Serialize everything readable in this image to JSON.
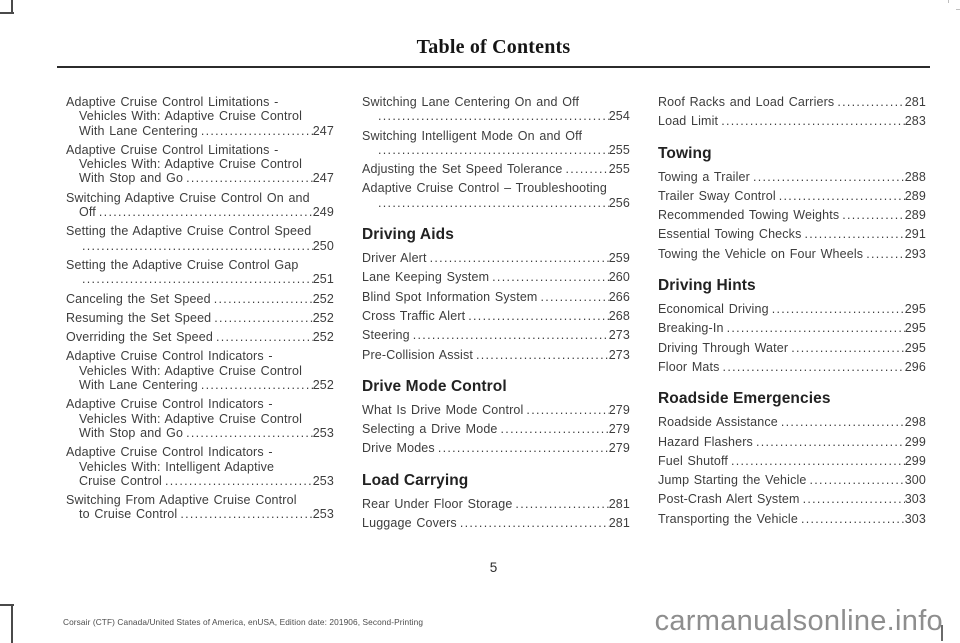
{
  "header": {
    "title": "Table of Contents"
  },
  "toc": {
    "columns": [
      {
        "blocks": [
          {
            "type": "entry",
            "lines": [
              {
                "text": "Adaptive Cruise Control Limitations -"
              },
              {
                "text": "Vehicles With: Adaptive Cruise Control",
                "indent": true
              },
              {
                "text": "With Lane Centering",
                "indent": true,
                "page": "247"
              }
            ]
          },
          {
            "type": "entry",
            "lines": [
              {
                "text": "Adaptive Cruise Control Limitations -"
              },
              {
                "text": "Vehicles With: Adaptive Cruise Control",
                "indent": true
              },
              {
                "text": "With Stop and Go",
                "indent": true,
                "page": "247"
              }
            ]
          },
          {
            "type": "entry",
            "lines": [
              {
                "text": "Switching Adaptive Cruise Control On and"
              },
              {
                "text": "Off",
                "indent": true,
                "page": "249"
              }
            ]
          },
          {
            "type": "entry",
            "lines": [
              {
                "text": "Setting the Adaptive Cruise Control Speed"
              },
              {
                "text": "",
                "indent": true,
                "page": "250"
              }
            ]
          },
          {
            "type": "entry",
            "lines": [
              {
                "text": "Setting the Adaptive Cruise Control Gap"
              },
              {
                "text": "",
                "indent": true,
                "page": "251"
              }
            ]
          },
          {
            "type": "entry",
            "lines": [
              {
                "text": "Canceling the Set Speed",
                "page": "252"
              }
            ]
          },
          {
            "type": "entry",
            "lines": [
              {
                "text": "Resuming the Set Speed",
                "page": "252"
              }
            ]
          },
          {
            "type": "entry",
            "lines": [
              {
                "text": "Overriding the Set Speed",
                "page": "252"
              }
            ]
          },
          {
            "type": "entry",
            "lines": [
              {
                "text": "Adaptive Cruise Control Indicators -"
              },
              {
                "text": "Vehicles With: Adaptive Cruise Control",
                "indent": true
              },
              {
                "text": "With Lane Centering",
                "indent": true,
                "page": "252"
              }
            ]
          },
          {
            "type": "entry",
            "lines": [
              {
                "text": "Adaptive Cruise Control Indicators -"
              },
              {
                "text": "Vehicles With: Adaptive Cruise Control",
                "indent": true
              },
              {
                "text": "With Stop and Go",
                "indent": true,
                "page": "253"
              }
            ]
          },
          {
            "type": "entry",
            "lines": [
              {
                "text": "Adaptive Cruise Control Indicators -"
              },
              {
                "text": "Vehicles With: Intelligent Adaptive",
                "indent": true
              },
              {
                "text": "Cruise Control",
                "indent": true,
                "page": "253"
              }
            ]
          },
          {
            "type": "entry",
            "lines": [
              {
                "text": "Switching From Adaptive Cruise Control"
              },
              {
                "text": "to Cruise Control",
                "indent": true,
                "page": "253"
              }
            ]
          }
        ]
      },
      {
        "blocks": [
          {
            "type": "entry",
            "lines": [
              {
                "text": "Switching Lane Centering On and Off"
              },
              {
                "text": "",
                "indent": true,
                "page": "254"
              }
            ]
          },
          {
            "type": "entry",
            "lines": [
              {
                "text": "Switching Intelligent Mode On and Off"
              },
              {
                "text": "",
                "indent": true,
                "page": "255"
              }
            ]
          },
          {
            "type": "entry",
            "lines": [
              {
                "text": "Adjusting the Set Speed Tolerance",
                "page": "255"
              }
            ]
          },
          {
            "type": "entry",
            "lines": [
              {
                "text": "Adaptive Cruise Control – Troubleshooting"
              },
              {
                "text": "",
                "indent": true,
                "page": "256"
              }
            ]
          },
          {
            "type": "heading",
            "text": "Driving Aids"
          },
          {
            "type": "entry",
            "lines": [
              {
                "text": "Driver Alert",
                "page": "259"
              }
            ]
          },
          {
            "type": "entry",
            "lines": [
              {
                "text": "Lane Keeping System",
                "page": "260"
              }
            ]
          },
          {
            "type": "entry",
            "lines": [
              {
                "text": "Blind Spot Information System",
                "page": "266"
              }
            ]
          },
          {
            "type": "entry",
            "lines": [
              {
                "text": "Cross Traffic Alert",
                "page": "268"
              }
            ]
          },
          {
            "type": "entry",
            "lines": [
              {
                "text": "Steering",
                "page": "273"
              }
            ]
          },
          {
            "type": "entry",
            "lines": [
              {
                "text": "Pre-Collision Assist",
                "page": "273"
              }
            ]
          },
          {
            "type": "heading",
            "text": "Drive Mode Control"
          },
          {
            "type": "entry",
            "lines": [
              {
                "text": "What Is Drive Mode Control",
                "page": "279"
              }
            ]
          },
          {
            "type": "entry",
            "lines": [
              {
                "text": "Selecting a Drive Mode",
                "page": "279"
              }
            ]
          },
          {
            "type": "entry",
            "lines": [
              {
                "text": "Drive Modes",
                "page": "279"
              }
            ]
          },
          {
            "type": "heading",
            "text": "Load Carrying"
          },
          {
            "type": "entry",
            "lines": [
              {
                "text": "Rear Under Floor Storage",
                "page": "281"
              }
            ]
          },
          {
            "type": "entry",
            "lines": [
              {
                "text": "Luggage Covers",
                "page": "281"
              }
            ]
          }
        ]
      },
      {
        "blocks": [
          {
            "type": "entry",
            "lines": [
              {
                "text": "Roof Racks and Load Carriers",
                "page": "281"
              }
            ]
          },
          {
            "type": "entry",
            "lines": [
              {
                "text": "Load Limit",
                "page": "283"
              }
            ]
          },
          {
            "type": "heading",
            "text": "Towing"
          },
          {
            "type": "entry",
            "lines": [
              {
                "text": "Towing a Trailer",
                "page": "288"
              }
            ]
          },
          {
            "type": "entry",
            "lines": [
              {
                "text": "Trailer Sway Control",
                "page": "289"
              }
            ]
          },
          {
            "type": "entry",
            "lines": [
              {
                "text": "Recommended Towing Weights",
                "page": "289"
              }
            ]
          },
          {
            "type": "entry",
            "lines": [
              {
                "text": "Essential Towing Checks",
                "page": "291"
              }
            ]
          },
          {
            "type": "entry",
            "lines": [
              {
                "text": "Towing the Vehicle on Four Wheels",
                "page": "293"
              }
            ]
          },
          {
            "type": "heading",
            "text": "Driving Hints"
          },
          {
            "type": "entry",
            "lines": [
              {
                "text": "Economical Driving",
                "page": "295"
              }
            ]
          },
          {
            "type": "entry",
            "lines": [
              {
                "text": "Breaking-In",
                "page": "295"
              }
            ]
          },
          {
            "type": "entry",
            "lines": [
              {
                "text": "Driving Through Water",
                "page": "295"
              }
            ]
          },
          {
            "type": "entry",
            "lines": [
              {
                "text": "Floor Mats",
                "page": "296"
              }
            ]
          },
          {
            "type": "heading",
            "text": "Roadside Emergencies"
          },
          {
            "type": "entry",
            "lines": [
              {
                "text": "Roadside Assistance",
                "page": "298"
              }
            ]
          },
          {
            "type": "entry",
            "lines": [
              {
                "text": "Hazard Flashers",
                "page": "299"
              }
            ]
          },
          {
            "type": "entry",
            "lines": [
              {
                "text": "Fuel Shutoff",
                "page": "299"
              }
            ]
          },
          {
            "type": "entry",
            "lines": [
              {
                "text": "Jump Starting the Vehicle",
                "page": "300"
              }
            ]
          },
          {
            "type": "entry",
            "lines": [
              {
                "text": "Post-Crash Alert System",
                "page": "303"
              }
            ]
          },
          {
            "type": "entry",
            "lines": [
              {
                "text": "Transporting the Vehicle",
                "page": "303"
              }
            ]
          }
        ]
      }
    ]
  },
  "footer": {
    "page_number": "5",
    "imprint": "Corsair (CTF) Canada/United States of America, enUSA, Edition date: 201906, Second-Printing"
  },
  "watermark": {
    "text": "carmanualsonline.info"
  },
  "colors": {
    "body_text": "#3d3d3d",
    "heading_text": "#222222",
    "title_text": "#151515",
    "rule": "#2b2b2b",
    "watermark": "#8e8e8e"
  }
}
